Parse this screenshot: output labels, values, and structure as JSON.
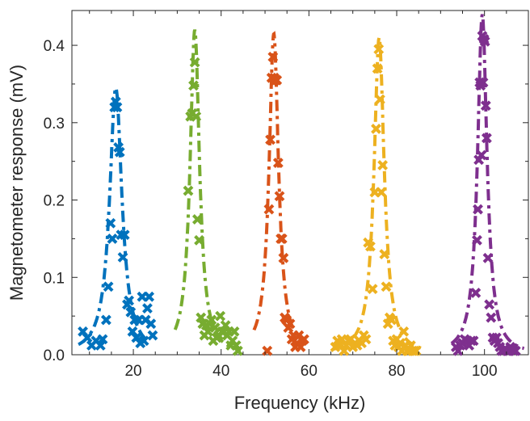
{
  "chart_data": {
    "type": "scatter",
    "title": "",
    "xlabel": "Frequency (kHz)",
    "ylabel": "Magnetometer response (mV)",
    "xlim": [
      6,
      110
    ],
    "ylim": [
      0,
      0.445
    ],
    "xticks": [
      "20",
      "40",
      "60",
      "80",
      "100"
    ],
    "yticks": [
      "0.0",
      "0.1",
      "0.2",
      "0.3",
      "0.4"
    ],
    "grid": false,
    "legend": "none",
    "colors": [
      "#0072BD",
      "#77AC30",
      "#D95319",
      "#EDB120",
      "#7E2F8E"
    ],
    "series": [
      {
        "color": "#0072BD",
        "fit": {
          "center": 16.0,
          "peak": 0.345,
          "width": 1.7,
          "x_range": [
            7.5,
            23.5
          ]
        },
        "points": [
          [
            8.5,
            0.03
          ],
          [
            9.5,
            0.022
          ],
          [
            10.5,
            0.012
          ],
          [
            11.5,
            0.018
          ],
          [
            12.5,
            0.012
          ],
          [
            13.0,
            0.02
          ],
          [
            13.8,
            0.045
          ],
          [
            14.3,
            0.088
          ],
          [
            14.8,
            0.17
          ],
          [
            15.2,
            0.15
          ],
          [
            15.7,
            0.32
          ],
          [
            16.0,
            0.327
          ],
          [
            16.3,
            0.32
          ],
          [
            16.6,
            0.268
          ],
          [
            16.9,
            0.262
          ],
          [
            17.2,
            0.155
          ],
          [
            17.6,
            0.126
          ],
          [
            18.0,
            0.155
          ],
          [
            18.6,
            0.065
          ],
          [
            19.0,
            0.07
          ],
          [
            19.4,
            0.055
          ],
          [
            19.8,
            0.03
          ],
          [
            20.3,
            0.045
          ],
          [
            20.7,
            0.022
          ],
          [
            21.2,
            0.045
          ],
          [
            21.6,
            0.015
          ],
          [
            22.0,
            0.075
          ],
          [
            22.4,
            0.018
          ],
          [
            22.8,
            0.045
          ],
          [
            23.2,
            0.06
          ],
          [
            23.6,
            0.075
          ],
          [
            24.0,
            0.04
          ],
          [
            24.4,
            0.025
          ]
        ]
      },
      {
        "color": "#77AC30",
        "fit": {
          "center": 34.0,
          "peak": 0.42,
          "width": 1.3,
          "x_range": [
            29.5,
            44.5
          ]
        },
        "points": [
          [
            32.5,
            0.212
          ],
          [
            33.0,
            0.308
          ],
          [
            33.4,
            0.312
          ],
          [
            33.7,
            0.348
          ],
          [
            34.0,
            0.378
          ],
          [
            34.3,
            0.308
          ],
          [
            34.6,
            0.175
          ],
          [
            35.0,
            0.148
          ],
          [
            35.4,
            0.048
          ],
          [
            35.8,
            0.04
          ],
          [
            36.2,
            0.025
          ],
          [
            36.6,
            0.038
          ],
          [
            37.0,
            0.03
          ],
          [
            37.4,
            0.04
          ],
          [
            37.8,
            0.045
          ],
          [
            38.2,
            0.018
          ],
          [
            38.6,
            0.035
          ],
          [
            39.0,
            0.022
          ],
          [
            39.4,
            0.025
          ],
          [
            39.8,
            0.05
          ],
          [
            40.2,
            0.03
          ],
          [
            40.6,
            0.03
          ],
          [
            41.0,
            0.038
          ],
          [
            41.4,
            0.025
          ],
          [
            41.8,
            0.03
          ],
          [
            42.2,
            0.012
          ],
          [
            42.6,
            0.018
          ],
          [
            43.0,
            0.03
          ],
          [
            43.4,
            0.012
          ],
          [
            43.8,
            0.005
          ]
        ]
      },
      {
        "color": "#D95319",
        "fit": {
          "center": 52.0,
          "peak": 0.415,
          "width": 1.3,
          "x_range": [
            47.5,
            59.0
          ]
        },
        "points": [
          [
            50.5,
            0.005
          ],
          [
            50.9,
            0.188
          ],
          [
            51.2,
            0.278
          ],
          [
            51.5,
            0.358
          ],
          [
            51.8,
            0.385
          ],
          [
            52.1,
            0.358
          ],
          [
            52.4,
            0.355
          ],
          [
            52.7,
            0.355
          ],
          [
            53.0,
            0.248
          ],
          [
            53.3,
            0.205
          ],
          [
            53.6,
            0.15
          ],
          [
            53.9,
            0.15
          ],
          [
            54.2,
            0.125
          ],
          [
            54.5,
            0.048
          ],
          [
            54.9,
            0.045
          ],
          [
            55.3,
            0.035
          ],
          [
            55.7,
            0.04
          ],
          [
            56.1,
            0.02
          ],
          [
            56.5,
            0.025
          ],
          [
            56.9,
            0.01
          ],
          [
            57.3,
            0.015
          ],
          [
            57.7,
            0.025
          ],
          [
            58.1,
            0.01
          ],
          [
            58.5,
            0.018
          ],
          [
            58.9,
            0.02
          ]
        ]
      },
      {
        "color": "#EDB120",
        "fit": {
          "center": 76.0,
          "peak": 0.41,
          "width": 1.4,
          "x_range": [
            65.5,
            85.5
          ]
        },
        "points": [
          [
            66.0,
            0.01
          ],
          [
            66.5,
            0.018
          ],
          [
            67.0,
            0.012
          ],
          [
            67.5,
            0.02
          ],
          [
            68.0,
            0.005
          ],
          [
            68.5,
            0.012
          ],
          [
            69.0,
            0.018
          ],
          [
            69.5,
            0.02
          ],
          [
            70.0,
            0.01
          ],
          [
            70.5,
            0.015
          ],
          [
            71.0,
            0.012
          ],
          [
            71.5,
            0.018
          ],
          [
            72.0,
            0.015
          ],
          [
            72.5,
            0.025
          ],
          [
            73.0,
            0.02
          ],
          [
            73.5,
            0.145
          ],
          [
            74.0,
            0.14
          ],
          [
            74.5,
            0.085
          ],
          [
            75.0,
            0.21
          ],
          [
            75.3,
            0.292
          ],
          [
            75.6,
            0.37
          ],
          [
            75.9,
            0.395
          ],
          [
            76.2,
            0.33
          ],
          [
            76.5,
            0.21
          ],
          [
            76.8,
            0.245
          ],
          [
            77.2,
            0.13
          ],
          [
            77.6,
            0.088
          ],
          [
            78.0,
            0.04
          ],
          [
            78.4,
            0.048
          ],
          [
            78.8,
            0.045
          ],
          [
            79.2,
            0.018
          ],
          [
            79.6,
            0.012
          ],
          [
            80.0,
            0.02
          ],
          [
            80.4,
            0.01
          ],
          [
            80.8,
            0.015
          ],
          [
            81.2,
            0.005
          ],
          [
            81.6,
            0.03
          ],
          [
            82.0,
            0.012
          ],
          [
            82.4,
            0.005
          ],
          [
            82.8,
            0.005
          ],
          [
            83.2,
            0.012
          ],
          [
            83.6,
            0.005
          ],
          [
            84.0,
            0.005
          ],
          [
            84.4,
            0.005
          ]
        ]
      },
      {
        "color": "#7E2F8E",
        "fit": {
          "center": 99.5,
          "peak": 0.44,
          "width": 1.3,
          "x_range": [
            92.5,
            109.0
          ]
        },
        "points": [
          [
            93.5,
            0.01
          ],
          [
            94.0,
            0.005
          ],
          [
            94.5,
            0.012
          ],
          [
            95.0,
            0.015
          ],
          [
            95.5,
            0.02
          ],
          [
            96.0,
            0.018
          ],
          [
            96.5,
            0.012
          ],
          [
            97.0,
            0.018
          ],
          [
            97.5,
            0.018
          ],
          [
            98.0,
            0.08
          ],
          [
            98.3,
            0.148
          ],
          [
            98.5,
            0.188
          ],
          [
            98.7,
            0.252
          ],
          [
            98.9,
            0.352
          ],
          [
            99.1,
            0.348
          ],
          [
            99.3,
            0.258
          ],
          [
            99.5,
            0.412
          ],
          [
            99.7,
            0.352
          ],
          [
            99.9,
            0.408
          ],
          [
            100.1,
            0.405
          ],
          [
            100.3,
            0.322
          ],
          [
            100.5,
            0.28
          ],
          [
            100.8,
            0.125
          ],
          [
            101.1,
            0.065
          ],
          [
            101.5,
            0.048
          ],
          [
            101.9,
            0.022
          ],
          [
            102.3,
            0.018
          ],
          [
            102.7,
            0.022
          ],
          [
            103.1,
            0.015
          ],
          [
            103.5,
            0.01
          ],
          [
            103.9,
            0.005
          ],
          [
            104.3,
            0.005
          ],
          [
            104.7,
            0.008
          ],
          [
            105.1,
            0.005
          ],
          [
            105.5,
            0.005
          ],
          [
            105.9,
            0.01
          ],
          [
            106.3,
            0.008
          ],
          [
            106.7,
            0.005
          ],
          [
            107.1,
            0.005
          ]
        ]
      }
    ]
  }
}
